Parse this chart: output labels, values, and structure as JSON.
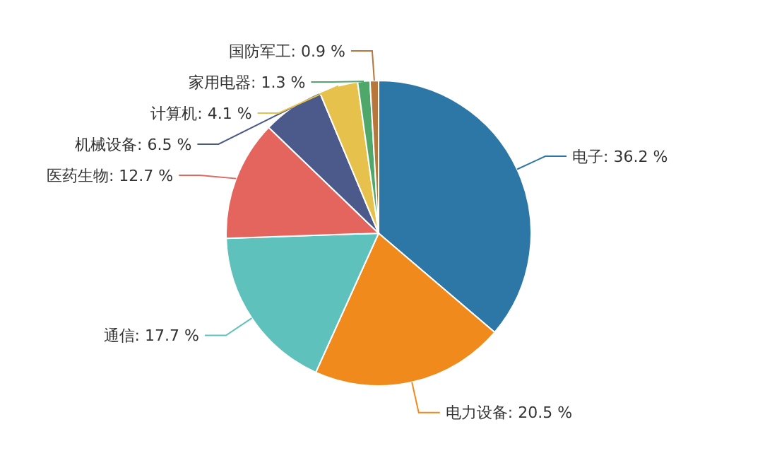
{
  "chart_data": {
    "type": "pie",
    "categories": [
      "电子",
      "电力设备",
      "通信",
      "医药生物",
      "机械设备",
      "计算机",
      "家用电器",
      "国防军工"
    ],
    "values": [
      36.2,
      20.5,
      17.7,
      12.7,
      6.5,
      4.1,
      1.3,
      0.9
    ],
    "value_labels": [
      "36.2 %",
      "20.5 %",
      "17.7 %",
      "12.7 %",
      "6.5 %",
      "4.1 %",
      "1.3 %",
      "0.9 %"
    ],
    "colors": [
      "#2c77a6",
      "#f08a1c",
      "#5fc1bb",
      "#e3655e",
      "#4b5a8a",
      "#e6c24c",
      "#4fa86a",
      "#b8773a"
    ]
  }
}
